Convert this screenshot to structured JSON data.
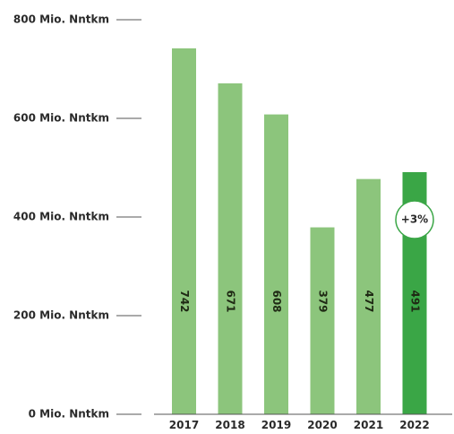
{
  "chart_data": {
    "type": "bar",
    "categories": [
      "2017",
      "2018",
      "2019",
      "2020",
      "2021",
      "2022"
    ],
    "values": [
      742,
      671,
      608,
      379,
      477,
      491
    ],
    "value_labels": [
      "742",
      "671",
      "608",
      "379",
      "477",
      "491"
    ],
    "yticks": [
      {
        "value": 800,
        "label": "800 Mio. Nntkm"
      },
      {
        "value": 600,
        "label": "600 Mio. Nntkm"
      },
      {
        "value": 400,
        "label": "400 Mio. Nntkm"
      },
      {
        "value": 200,
        "label": "200 Mio. Nntkm"
      },
      {
        "value": 0,
        "label": "0 Mio. Nntkm"
      }
    ],
    "ylim": [
      0,
      800
    ],
    "grid": false,
    "highlight_index": 5,
    "annotation": {
      "text": "+3%",
      "category": "2022"
    },
    "colors": {
      "bar": "#8cc57c",
      "bar_highlight": "#3aa646",
      "axis": "#555555",
      "text": "#2a2a2a",
      "badge_border": "#3aa646",
      "badge_fill": "#ffffff"
    }
  }
}
